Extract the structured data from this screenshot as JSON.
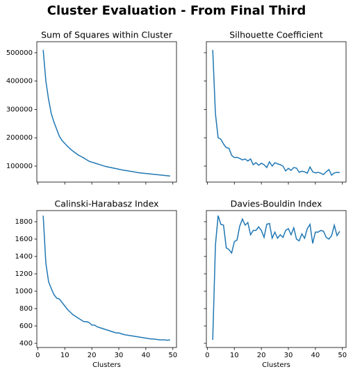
{
  "title": "Cluster Evaluation - From Final Third",
  "chart_data": [
    {
      "type": "line",
      "title": "Sum of Squares within Cluster",
      "color": "#1f77b4",
      "x": [
        2,
        3,
        4,
        5,
        6,
        7,
        8,
        9,
        10,
        11,
        12,
        13,
        14,
        15,
        16,
        17,
        18,
        19,
        20,
        21,
        22,
        23,
        24,
        25,
        26,
        27,
        28,
        29,
        30,
        31,
        32,
        33,
        34,
        35,
        36,
        37,
        38,
        39,
        40,
        41,
        42,
        43,
        44,
        45,
        46,
        47,
        48,
        49
      ],
      "values": [
        510000,
        400000,
        335000,
        285000,
        255000,
        230000,
        205000,
        190000,
        180000,
        170000,
        161000,
        153000,
        146000,
        139000,
        134000,
        129000,
        123000,
        117000,
        114000,
        111000,
        108000,
        105000,
        102000,
        99000,
        97000,
        95000,
        93000,
        91000,
        89000,
        87000,
        85000,
        84000,
        82000,
        81000,
        79000,
        77000,
        76000,
        75000,
        74000,
        73000,
        72000,
        71000,
        70000,
        69000,
        68000,
        67000,
        66000,
        65000
      ],
      "xlim": [
        -0.35,
        51.35
      ],
      "xticks": [
        0,
        10,
        20,
        30,
        40,
        50
      ],
      "ylim": [
        43600,
        539000
      ],
      "yticks": [
        100000,
        200000,
        300000,
        400000,
        500000
      ],
      "xtick_labels": false,
      "ytick_labels": true
    },
    {
      "type": "line",
      "title": "Silhouette Coefficient",
      "color": "#1f77b4",
      "x": [
        2,
        3,
        4,
        5,
        6,
        7,
        8,
        9,
        10,
        11,
        12,
        13,
        14,
        15,
        16,
        17,
        18,
        19,
        20,
        21,
        22,
        23,
        24,
        25,
        26,
        27,
        28,
        29,
        30,
        31,
        32,
        33,
        34,
        35,
        36,
        37,
        38,
        39,
        40,
        41,
        42,
        43,
        44,
        45,
        46,
        47,
        48,
        49
      ],
      "values": [
        510000,
        285000,
        200000,
        195000,
        178000,
        165000,
        163000,
        138000,
        130000,
        131000,
        127000,
        122000,
        125000,
        118000,
        125000,
        105000,
        112000,
        103000,
        110000,
        105000,
        95000,
        115000,
        100000,
        112000,
        108000,
        105000,
        100000,
        83000,
        92000,
        85000,
        95000,
        93000,
        78000,
        82000,
        80000,
        75000,
        97000,
        80000,
        76000,
        78000,
        75000,
        70000,
        80000,
        88000,
        68000,
        76000,
        78000,
        77000
      ],
      "xlim": [
        -0.35,
        51.35
      ],
      "xticks": [
        0,
        10,
        20,
        30,
        40,
        50
      ],
      "ylim": [
        43600,
        539000
      ],
      "yticks": [
        100000,
        200000,
        300000,
        400000,
        500000
      ],
      "xtick_labels": false,
      "ytick_labels": false
    },
    {
      "type": "line",
      "title": "Calinski-Harabasz Index",
      "color": "#1f77b4",
      "xlabel": "Clusters",
      "x": [
        2,
        3,
        4,
        5,
        6,
        7,
        8,
        9,
        10,
        11,
        12,
        13,
        14,
        15,
        16,
        17,
        18,
        19,
        20,
        21,
        22,
        23,
        24,
        25,
        26,
        27,
        28,
        29,
        30,
        31,
        32,
        33,
        34,
        35,
        36,
        37,
        38,
        39,
        40,
        41,
        42,
        43,
        44,
        45,
        46,
        47,
        48,
        49
      ],
      "values": [
        1870,
        1320,
        1110,
        1030,
        960,
        920,
        910,
        870,
        830,
        790,
        760,
        730,
        710,
        690,
        670,
        650,
        650,
        640,
        610,
        610,
        590,
        580,
        570,
        560,
        550,
        540,
        530,
        520,
        520,
        510,
        500,
        495,
        490,
        485,
        480,
        475,
        470,
        465,
        460,
        455,
        450,
        450,
        445,
        440,
        440,
        440,
        435,
        440
      ],
      "xlim": [
        -0.35,
        51.35
      ],
      "xticks": [
        0,
        10,
        20,
        30,
        40,
        50
      ],
      "ylim": [
        352,
        1928
      ],
      "yticks": [
        400,
        600,
        800,
        1000,
        1200,
        1400,
        1600,
        1800
      ],
      "xtick_labels": true,
      "ytick_labels": true
    },
    {
      "type": "line",
      "title": "Davies-Bouldin Index",
      "color": "#1f77b4",
      "xlabel": "Clusters",
      "x": [
        2,
        3,
        4,
        5,
        6,
        7,
        8,
        9,
        10,
        11,
        12,
        13,
        14,
        15,
        16,
        17,
        18,
        19,
        20,
        21,
        22,
        23,
        24,
        25,
        26,
        27,
        28,
        29,
        30,
        31,
        32,
        33,
        34,
        35,
        36,
        37,
        38,
        39,
        40,
        41,
        42,
        43,
        44,
        45,
        46,
        47,
        48,
        49
      ],
      "values": [
        440,
        1530,
        1870,
        1770,
        1760,
        1500,
        1480,
        1440,
        1570,
        1590,
        1750,
        1830,
        1760,
        1790,
        1650,
        1700,
        1700,
        1740,
        1700,
        1620,
        1770,
        1780,
        1610,
        1680,
        1610,
        1650,
        1620,
        1700,
        1720,
        1650,
        1730,
        1600,
        1580,
        1660,
        1610,
        1720,
        1770,
        1550,
        1680,
        1680,
        1700,
        1690,
        1620,
        1600,
        1640,
        1760,
        1640,
        1690
      ],
      "xlim": [
        -0.35,
        51.35
      ],
      "xticks": [
        0,
        10,
        20,
        30,
        40,
        50
      ],
      "ylim": [
        352,
        1928
      ],
      "yticks": [
        400,
        600,
        800,
        1000,
        1200,
        1400,
        1600,
        1800
      ],
      "xtick_labels": true,
      "ytick_labels": false
    }
  ]
}
